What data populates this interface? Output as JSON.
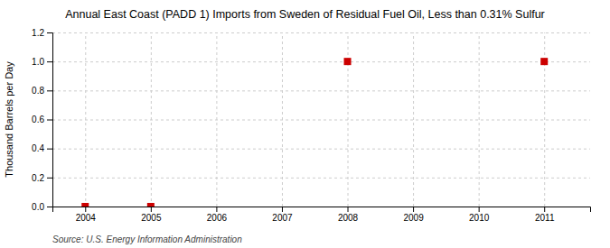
{
  "chart_data": {
    "type": "scatter",
    "title": "Annual East Coast (PADD 1) Imports from Sweden of Residual Fuel Oil, Less than 0.31% Sulfur",
    "ylabel": "Thousand Barrels per Day",
    "source": "Source: U.S. Energy Information Administration",
    "x": [
      2004,
      2005,
      2008,
      2011
    ],
    "values": [
      0.0,
      0.0,
      1.0,
      1.0
    ],
    "color": "#cc0000",
    "marker": "square",
    "xlim": [
      2003.5,
      2011.7
    ],
    "xticks": [
      2004,
      2005,
      2006,
      2007,
      2008,
      2009,
      2010,
      2011
    ],
    "ylim": [
      0.0,
      1.2
    ],
    "yticks": [
      {
        "value": 0.0,
        "label": "0.0"
      },
      0.2,
      0.4,
      0.6,
      0.8,
      {
        "value": 1.0,
        "label": "1.0"
      },
      1.2
    ],
    "grid": true
  }
}
